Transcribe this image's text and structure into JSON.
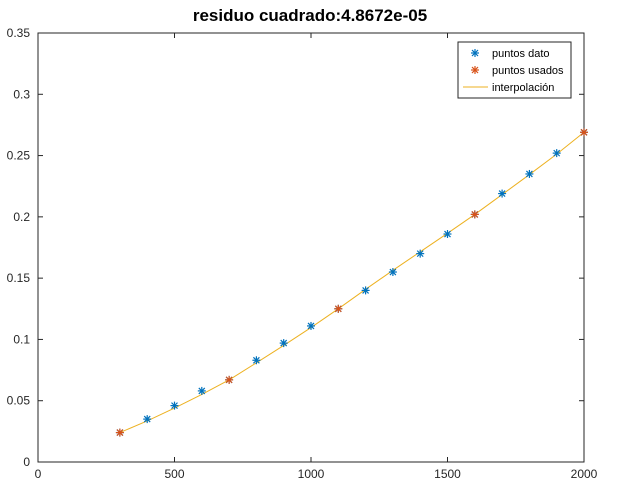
{
  "chart_data": {
    "type": "scatter",
    "title": "residuo cuadrado:4.8672e-05",
    "xlabel": "",
    "ylabel": "",
    "xlim": [
      0,
      2000
    ],
    "ylim": [
      0,
      0.35
    ],
    "xticks": [
      0,
      500,
      1000,
      1500,
      2000
    ],
    "xtick_labels": [
      "0",
      "500",
      "1000",
      "1500",
      "2000"
    ],
    "yticks": [
      0,
      0.05,
      0.1,
      0.15,
      0.2,
      0.25,
      0.3,
      0.35
    ],
    "ytick_labels": [
      "0",
      "0.05",
      "0.1",
      "0.15",
      "0.2",
      "0.25",
      "0.3",
      "0.35"
    ],
    "grid": false,
    "legend_position": "top-right",
    "series": [
      {
        "name": "puntos dato",
        "kind": "marker",
        "marker": "asterisk",
        "color": "#0072bd",
        "x": [
          300,
          400,
          500,
          600,
          700,
          800,
          900,
          1000,
          1100,
          1200,
          1300,
          1400,
          1500,
          1600,
          1700,
          1800,
          1900,
          2000
        ],
        "y": [
          0.024,
          0.035,
          0.046,
          0.058,
          0.067,
          0.083,
          0.097,
          0.111,
          0.125,
          0.14,
          0.155,
          0.17,
          0.186,
          0.202,
          0.219,
          0.235,
          0.252,
          0.269
        ]
      },
      {
        "name": "puntos usados",
        "kind": "marker",
        "marker": "asterisk",
        "color": "#d95319",
        "x": [
          300,
          700,
          1100,
          1600,
          2000
        ],
        "y": [
          0.024,
          0.067,
          0.125,
          0.202,
          0.269
        ]
      },
      {
        "name": "interpolación",
        "kind": "line",
        "color": "#edb120",
        "x": [
          300,
          400,
          500,
          600,
          700,
          800,
          900,
          1000,
          1100,
          1200,
          1300,
          1400,
          1500,
          1600,
          1700,
          1800,
          1900,
          2000
        ],
        "y": [
          0.024,
          0.0335,
          0.044,
          0.0551,
          0.067,
          0.0809,
          0.0951,
          0.1097,
          0.125,
          0.1409,
          0.1564,
          0.1715,
          0.1866,
          0.202,
          0.2182,
          0.2345,
          0.2512,
          0.269
        ]
      }
    ]
  }
}
